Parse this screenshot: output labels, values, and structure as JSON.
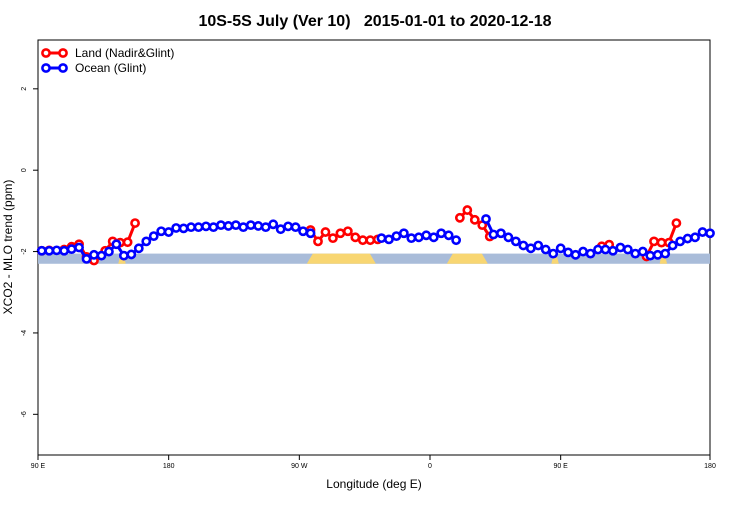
{
  "chart_data": {
    "type": "line",
    "title": "10S-5S July (Ver 10)   2015-01-01 to 2020-12-18",
    "xlabel": "Longitude (deg E)",
    "ylabel": "XCO2 - MLO trend (ppm)",
    "xlim": [
      90,
      450
    ],
    "ylim": [
      -7,
      3.2
    ],
    "x_ticks": [
      {
        "value": 90,
        "label": "90 E"
      },
      {
        "value": 160,
        "label": "180"
      },
      {
        "value": 230,
        "label": "90 W"
      },
      {
        "value": 300,
        "label": "0"
      },
      {
        "value": 370,
        "label": "90 E"
      },
      {
        "value": 450,
        "label": "180"
      }
    ],
    "y_ticks": [
      {
        "value": 2,
        "label": "2"
      },
      {
        "value": 0,
        "label": "0"
      },
      {
        "value": -2,
        "label": "-2"
      },
      {
        "value": -4,
        "label": "-4"
      },
      {
        "value": -6,
        "label": "-6"
      }
    ],
    "legend": {
      "position": "top-left"
    },
    "surface_bar": {
      "y_range": [
        -2.05,
        -2.3
      ],
      "ocean_color": "#a9bcd9",
      "land_color": "#f8d672",
      "land_segments": [
        [
          133,
          137
        ],
        [
          234,
          271
        ],
        [
          309,
          331
        ],
        [
          365,
          369
        ],
        [
          423,
          427
        ]
      ]
    },
    "series": [
      {
        "name": "Land (Nadir&Glint)",
        "color": "#ff0000",
        "x": [
          92,
          96,
          104,
          108,
          112,
          116,
          120,
          126,
          130,
          134,
          138,
          142,
          236,
          240,
          244,
          248,
          252,
          256,
          260,
          264,
          268,
          272,
          316,
          320,
          324,
          328,
          332,
          392,
          396,
          416,
          420,
          424,
          428,
          432
        ],
        "y": [
          -1.98,
          -1.97,
          -1.95,
          -1.88,
          -1.82,
          -2.13,
          -2.22,
          -1.98,
          -1.75,
          -1.78,
          -1.77,
          -1.3,
          -1.47,
          -1.75,
          -1.52,
          -1.67,
          -1.55,
          -1.5,
          -1.65,
          -1.72,
          -1.72,
          -1.7,
          -1.17,
          -0.98,
          -1.22,
          -1.35,
          -1.63,
          -1.87,
          -1.83,
          -2.12,
          -1.75,
          -1.78,
          -1.78,
          -1.3
        ]
      },
      {
        "name": "Ocean (Glint)",
        "color": "#0000ff",
        "x": [
          92,
          96,
          100,
          104,
          108,
          112,
          116,
          120,
          124,
          128,
          132,
          136,
          140,
          144,
          148,
          152,
          156,
          160,
          164,
          168,
          172,
          176,
          180,
          184,
          188,
          192,
          196,
          200,
          204,
          208,
          212,
          216,
          220,
          224,
          228,
          232,
          236,
          274,
          278,
          282,
          286,
          290,
          294,
          298,
          302,
          306,
          310,
          314,
          330,
          334,
          338,
          342,
          346,
          350,
          354,
          358,
          362,
          366,
          370,
          374,
          378,
          382,
          386,
          390,
          394,
          398,
          402,
          406,
          410,
          414,
          418,
          422,
          426,
          430,
          434,
          438,
          442,
          446,
          450
        ],
        "y": [
          -1.98,
          -1.98,
          -1.97,
          -1.98,
          -1.94,
          -1.9,
          -2.18,
          -2.08,
          -2.1,
          -2.0,
          -1.82,
          -2.1,
          -2.07,
          -1.92,
          -1.75,
          -1.62,
          -1.5,
          -1.52,
          -1.42,
          -1.43,
          -1.4,
          -1.4,
          -1.38,
          -1.4,
          -1.35,
          -1.37,
          -1.35,
          -1.4,
          -1.35,
          -1.37,
          -1.4,
          -1.33,
          -1.45,
          -1.38,
          -1.4,
          -1.5,
          -1.55,
          -1.67,
          -1.7,
          -1.62,
          -1.55,
          -1.67,
          -1.65,
          -1.6,
          -1.65,
          -1.55,
          -1.6,
          -1.72,
          -1.2,
          -1.58,
          -1.55,
          -1.65,
          -1.75,
          -1.85,
          -1.92,
          -1.85,
          -1.95,
          -2.05,
          -1.92,
          -2.02,
          -2.08,
          -2.0,
          -2.05,
          -1.95,
          -1.95,
          -1.98,
          -1.9,
          -1.95,
          -2.05,
          -2.0,
          -2.1,
          -2.08,
          -2.05,
          -1.85,
          -1.75,
          -1.68,
          -1.65,
          -1.52,
          -1.55
        ]
      }
    ]
  }
}
